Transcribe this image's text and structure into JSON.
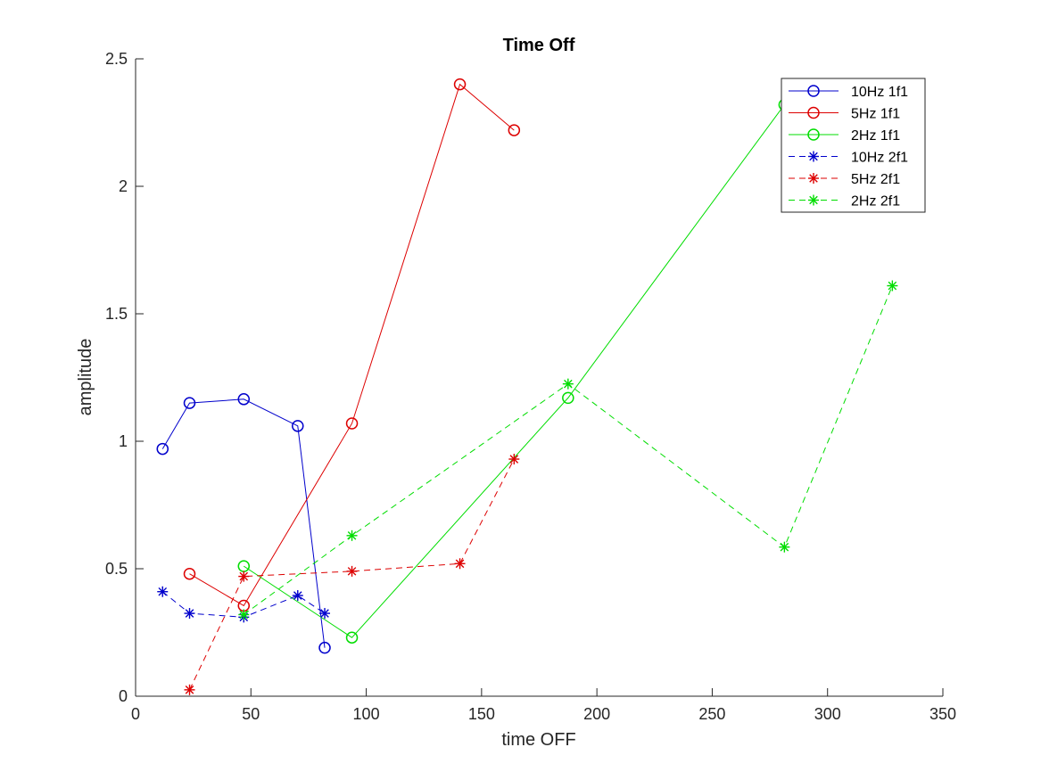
{
  "chart_data": {
    "type": "line",
    "title": "Time Off",
    "xlabel": "time OFF",
    "ylabel": "amplitude",
    "xlim": [
      0,
      350
    ],
    "ylim": [
      0,
      2.5
    ],
    "xticks": [
      0,
      50,
      100,
      150,
      200,
      250,
      300,
      350
    ],
    "yticks": [
      0,
      0.5,
      1,
      1.5,
      2,
      2.5
    ],
    "xtick_labels": [
      "0",
      "50",
      "100",
      "150",
      "200",
      "250",
      "300",
      "350"
    ],
    "ytick_labels": [
      "0",
      "0.5",
      "1",
      "1.5",
      "2",
      "2.5"
    ],
    "grid": false,
    "legend_position": "top-right",
    "series": [
      {
        "name": "10Hz 1f1",
        "color": "#0000cc",
        "marker": "circle",
        "line": "solid",
        "x": [
          11.7,
          23.4,
          46.9,
          70.3,
          82.0
        ],
        "y": [
          0.97,
          1.15,
          1.165,
          1.06,
          0.19
        ]
      },
      {
        "name": "5Hz 1f1",
        "color": "#dd0000",
        "marker": "circle",
        "line": "solid",
        "x": [
          23.4,
          46.9,
          93.8,
          140.6,
          164.1
        ],
        "y": [
          0.48,
          0.355,
          1.07,
          2.4,
          2.22
        ]
      },
      {
        "name": "2Hz 1f1",
        "color": "#00dd00",
        "marker": "circle",
        "line": "solid",
        "x": [
          46.9,
          93.8,
          187.5,
          281.3,
          328.1
        ],
        "y": [
          0.51,
          0.23,
          1.17,
          2.32,
          2.24
        ]
      },
      {
        "name": "10Hz 2f1",
        "color": "#0000cc",
        "marker": "asterisk",
        "line": "dashed",
        "x": [
          11.7,
          23.4,
          46.9,
          70.3,
          82.0
        ],
        "y": [
          0.41,
          0.325,
          0.31,
          0.395,
          0.325
        ]
      },
      {
        "name": "5Hz 2f1",
        "color": "#dd0000",
        "marker": "asterisk",
        "line": "dashed",
        "x": [
          23.4,
          46.9,
          93.8,
          140.6,
          164.1
        ],
        "y": [
          0.025,
          0.47,
          0.49,
          0.52,
          0.93
        ]
      },
      {
        "name": "2Hz 2f1",
        "color": "#00dd00",
        "marker": "asterisk",
        "line": "dashed",
        "x": [
          46.9,
          93.8,
          187.5,
          281.3,
          328.1
        ],
        "y": [
          0.32,
          0.63,
          1.225,
          0.585,
          1.61
        ]
      }
    ]
  }
}
